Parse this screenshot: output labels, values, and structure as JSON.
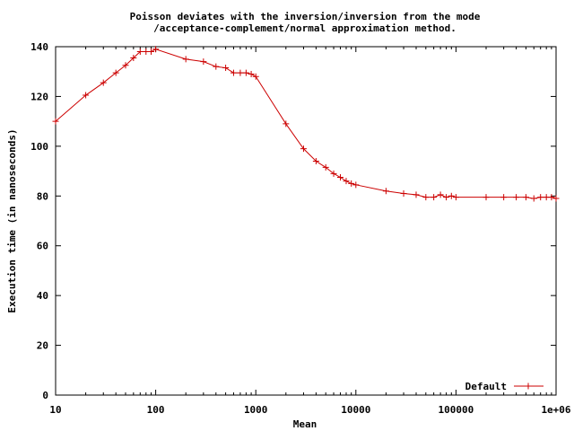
{
  "chart_data": {
    "type": "line",
    "title_lines": [
      "Poisson deviates with the inversion/inversion from the mode",
      "/acceptance-complement/normal approximation method."
    ],
    "xlabel": "Mean",
    "ylabel": "Execution time (in nanoseconds)",
    "x_scale": "log",
    "xlim": [
      10,
      1000000
    ],
    "ylim": [
      0,
      140
    ],
    "x_ticks": [
      10,
      100,
      1000,
      10000,
      100000,
      1000000
    ],
    "x_tick_labels": [
      "10",
      "100",
      "1000",
      "10000",
      "100000",
      "1e+06"
    ],
    "y_ticks": [
      0,
      20,
      40,
      60,
      80,
      100,
      120,
      140
    ],
    "y_tick_labels": [
      "0",
      "20",
      "40",
      "60",
      "80",
      "100",
      "120",
      "140"
    ],
    "grid": false,
    "legend_position": "bottom-right",
    "series": [
      {
        "name": "Default",
        "color": "#cc0000",
        "marker": "plus",
        "x": [
          10,
          20,
          30,
          40,
          50,
          60,
          70,
          80,
          90,
          100,
          200,
          300,
          400,
          500,
          600,
          700,
          800,
          900,
          1000,
          2000,
          3000,
          4000,
          5000,
          6000,
          7000,
          8000,
          9000,
          10000,
          20000,
          30000,
          40000,
          50000,
          60000,
          70000,
          80000,
          90000,
          100000,
          200000,
          300000,
          400000,
          500000,
          600000,
          700000,
          800000,
          900000,
          1000000
        ],
        "y": [
          110,
          120.5,
          125.5,
          129.5,
          132.5,
          135.5,
          138,
          138,
          138,
          139,
          135,
          134,
          132,
          131.5,
          129.5,
          129.5,
          129.5,
          129,
          128,
          109,
          99,
          94,
          91.5,
          89,
          87.5,
          86,
          85,
          84.5,
          82,
          81,
          80.5,
          79.5,
          79.5,
          80.5,
          79.5,
          80,
          79.5,
          79.5,
          79.5,
          79.5,
          79.5,
          79,
          79.5,
          79.5,
          79.5,
          79
        ]
      }
    ]
  }
}
